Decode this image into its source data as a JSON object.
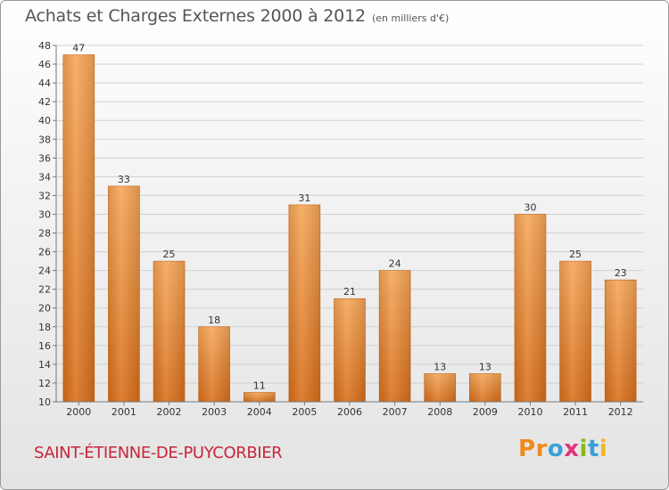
{
  "header": {
    "title": "Achats et Charges Externes 2000 à 2012",
    "unit": "(en milliers d'€)"
  },
  "footer": {
    "commune": "SAINT-ÉTIENNE-DE-PUYCORBIER",
    "logo_letters": [
      "P",
      "r",
      "o",
      "x",
      "i",
      "t",
      "i"
    ],
    "logo_colors": [
      "#f08a1d",
      "#f08a1d",
      "#3aa0d8",
      "#e2337a",
      "#8ab820",
      "#3aa0d8",
      "#f0b820"
    ]
  },
  "chart_data": {
    "type": "bar",
    "title": "Achats et Charges Externes 2000 à 2012",
    "categories": [
      "2000",
      "2001",
      "2002",
      "2003",
      "2004",
      "2005",
      "2006",
      "2007",
      "2008",
      "2009",
      "2010",
      "2011",
      "2012"
    ],
    "values": [
      47,
      33,
      25,
      18,
      11,
      31,
      21,
      24,
      13,
      13,
      30,
      25,
      23
    ],
    "ylim": [
      10,
      48
    ],
    "yticks": [
      10,
      12,
      14,
      16,
      18,
      20,
      22,
      24,
      26,
      28,
      30,
      32,
      34,
      36,
      38,
      40,
      42,
      44,
      46,
      48
    ],
    "grid": true,
    "bar_color": "#f0963c"
  }
}
